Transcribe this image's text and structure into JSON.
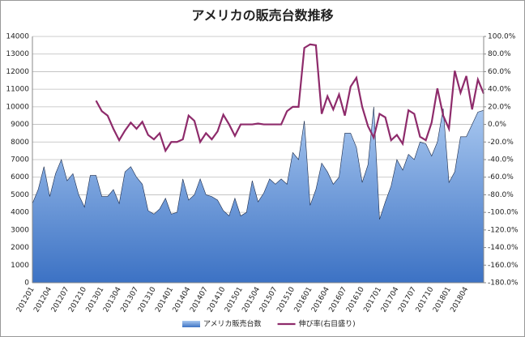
{
  "chart_data": {
    "type": "area-line",
    "title": "アメリカの販売台数推移",
    "categories": [
      "201201",
      null,
      null,
      "201204",
      null,
      null,
      "201207",
      null,
      null,
      "201210",
      null,
      null,
      "201301",
      null,
      null,
      "201304",
      null,
      null,
      "201307",
      null,
      null,
      "201310",
      null,
      null,
      "201401",
      null,
      null,
      "201404",
      null,
      null,
      "201407",
      null,
      null,
      "201410",
      null,
      null,
      "201501",
      null,
      null,
      "201504",
      null,
      null,
      "201507",
      null,
      null,
      "201510",
      null,
      null,
      "201601",
      null,
      null,
      "201604",
      null,
      null,
      "201607",
      null,
      null,
      "201610",
      null,
      null,
      "201701",
      null,
      null,
      "201704",
      null,
      null,
      "201707",
      null,
      null,
      "201710",
      null,
      null,
      "201801",
      null,
      null,
      "201804",
      null,
      null,
      null
    ],
    "series": [
      {
        "name": "アメリカ販売台数",
        "color": "#5b8fd6",
        "type": "area",
        "values": [
          4500,
          5300,
          6600,
          4900,
          6200,
          7000,
          5800,
          6200,
          5000,
          4300,
          6100,
          6100,
          4900,
          4900,
          5300,
          4500,
          6300,
          6600,
          6000,
          5600,
          4100,
          3900,
          4200,
          4800,
          3900,
          4000,
          5900,
          4700,
          5000,
          5900,
          5000,
          4900,
          4700,
          4100,
          3800,
          4800,
          3800,
          4000,
          5800,
          4600,
          5100,
          5900,
          5600,
          5900,
          5600,
          7400,
          7000,
          9200,
          4400,
          5300,
          6800,
          6300,
          5600,
          6000,
          8500,
          8500,
          7700,
          5700,
          6700,
          10000,
          3600,
          4600,
          5500,
          7000,
          6400,
          7300,
          7000,
          8000,
          7900,
          7200,
          8000,
          9900,
          5700,
          6300,
          8300,
          8300,
          9000,
          9700,
          9800
        ]
      },
      {
        "name": "伸び率(右目盛り)",
        "color": "#8e2b6b",
        "type": "line",
        "axis": "y2",
        "values": [
          null,
          null,
          null,
          null,
          null,
          null,
          null,
          null,
          null,
          null,
          null,
          27,
          15,
          10,
          -5,
          -18,
          -7,
          2,
          -5,
          3,
          -12,
          -17,
          -10,
          -30,
          -20,
          -20,
          -17,
          10,
          4,
          -20,
          -10,
          -17,
          -8,
          11,
          0,
          -13,
          0,
          0,
          0,
          1,
          0,
          0,
          0,
          0,
          15,
          20,
          20,
          87,
          91,
          90,
          12,
          32,
          17,
          34,
          10,
          43,
          53,
          20,
          -2,
          -15,
          12,
          8,
          -18,
          -12,
          -22,
          16,
          12,
          -14,
          -18,
          2,
          41,
          10,
          -5,
          61,
          36,
          55,
          17,
          51,
          35
        ]
      }
    ],
    "ylim": [
      0,
      14000
    ],
    "yticks": [
      0,
      1000,
      2000,
      3000,
      4000,
      5000,
      6000,
      7000,
      8000,
      9000,
      10000,
      11000,
      12000,
      13000,
      14000
    ],
    "y2lim": [
      -180,
      100
    ],
    "y2ticks": [
      {
        "value": -180,
        "label": "-180.0%"
      },
      {
        "value": -160,
        "label": "-160.0%"
      },
      {
        "value": -140,
        "label": "-140.0%"
      },
      {
        "value": -120,
        "label": "-120.0%"
      },
      {
        "value": -100,
        "label": "-100.0%"
      },
      {
        "value": -80,
        "label": "-80.0%"
      },
      {
        "value": -60,
        "label": "-60.0%"
      },
      {
        "value": -40,
        "label": "-40.0%"
      },
      {
        "value": -20,
        "label": "-20.0%"
      },
      {
        "value": 0,
        "label": "0.0%"
      },
      {
        "value": 20,
        "label": "20.0%"
      },
      {
        "value": 40,
        "label": "40.0%"
      },
      {
        "value": 60,
        "label": "60.0%"
      },
      {
        "value": 80,
        "label": "80.0%"
      },
      {
        "value": 100,
        "label": "100.0%"
      }
    ],
    "grid": true,
    "legend": "bottom"
  }
}
